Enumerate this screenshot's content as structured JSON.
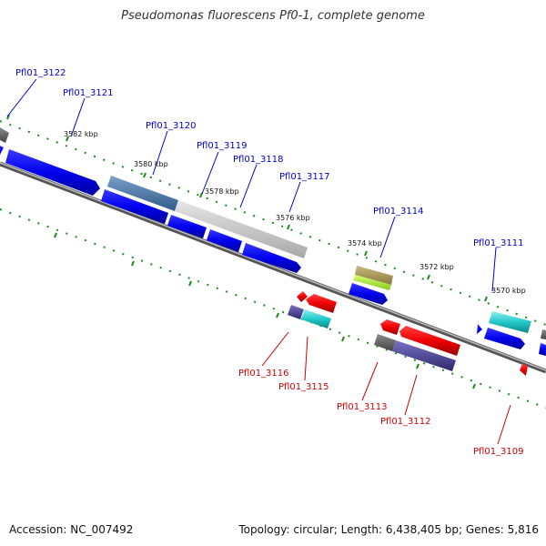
{
  "title": "Pseudomonas fluorescens Pf0-1, complete genome",
  "footer": {
    "accession": "Accession: NC_007492",
    "summary": "Topology: circular; Length: 6,438,405 bp; Genes: 5,816"
  },
  "colors": {
    "forward_label": "#0000cc",
    "reverse_label": "#cc0000",
    "backbone": "#888888",
    "dots": "#1a8a1a",
    "ticks": "#1a8a1a"
  },
  "ticks": [
    "3582 kbp",
    "3580 kbp",
    "3578 kbp",
    "3576 kbp",
    "3574 kbp",
    "3572 kbp",
    "3570 kbp"
  ],
  "genes_forward": [
    "Pfl01_3122",
    "Pfl01_3121",
    "Pfl01_3120",
    "Pfl01_3119",
    "Pfl01_3118",
    "Pfl01_3117",
    "Pfl01_3114",
    "Pfl01_3111"
  ],
  "genes_reverse": [
    "Pfl01_3116",
    "Pfl01_3115",
    "Pfl01_3113",
    "Pfl01_3112",
    "Pfl01_3109"
  ]
}
